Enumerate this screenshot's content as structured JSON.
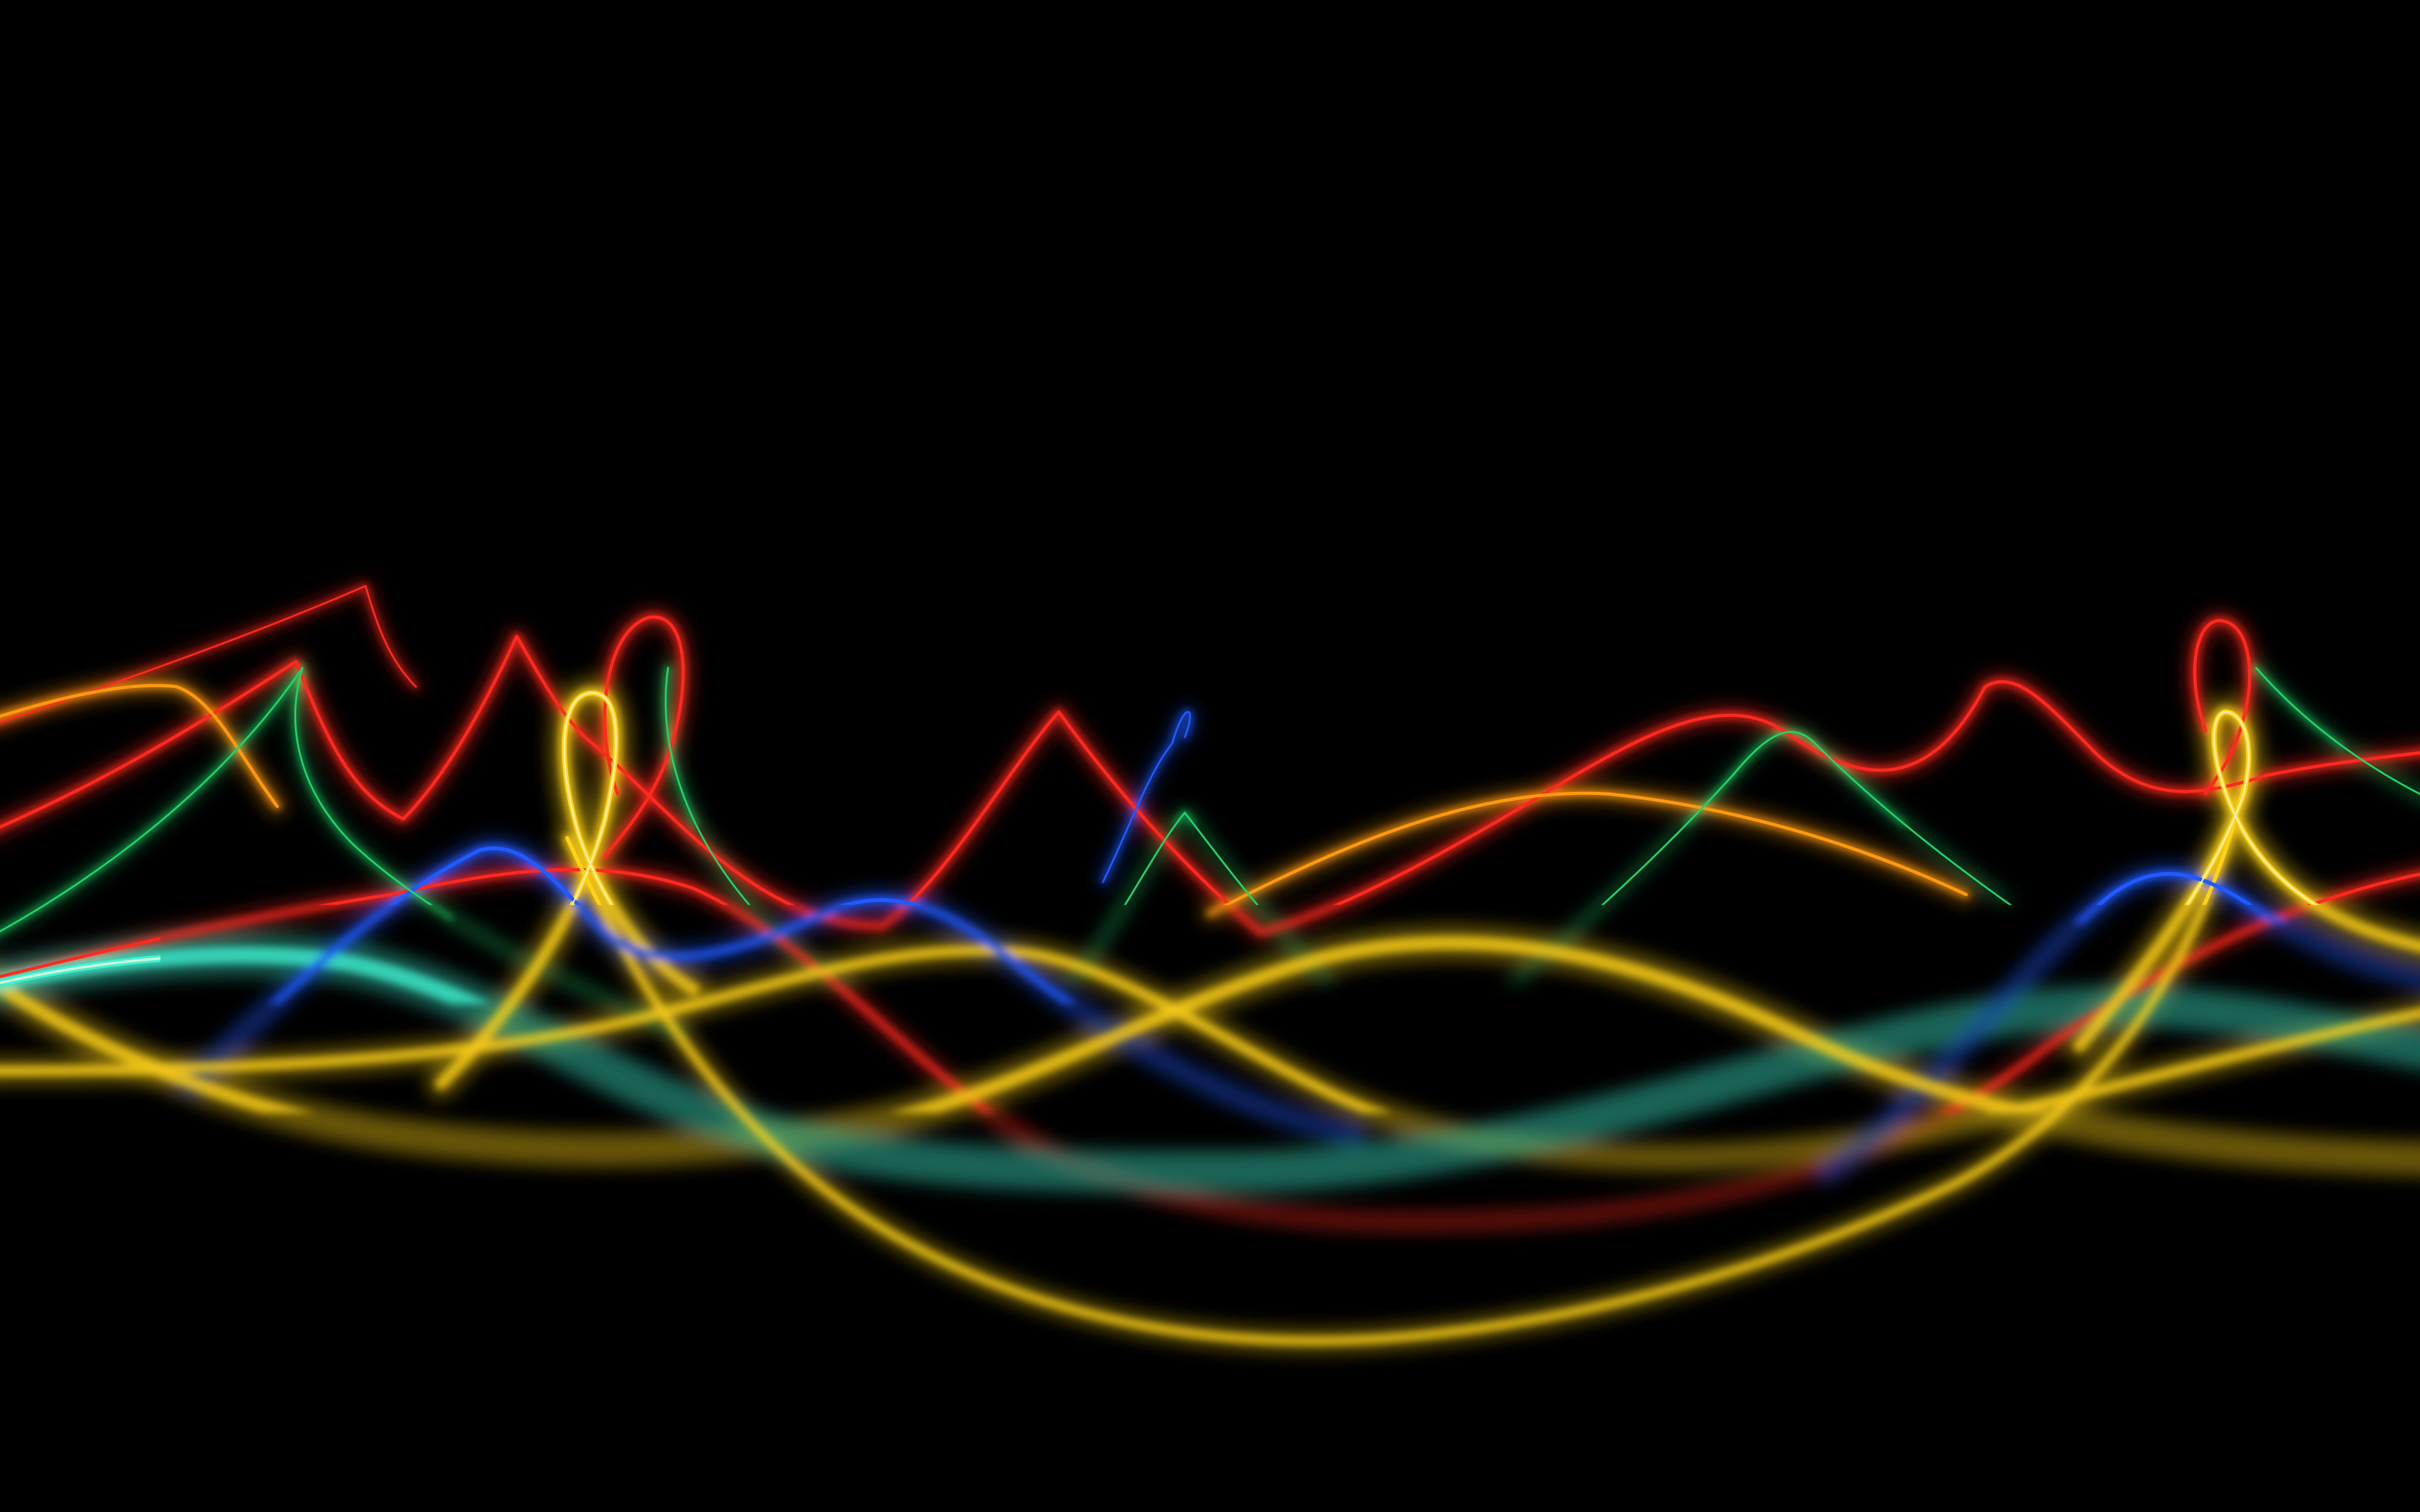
{
  "background": "#000000",
  "colors": {
    "red": "#ff2a1e",
    "yellow": "#ffd21a",
    "orange": "#ff9a10",
    "cyan": "#3ef2d2",
    "blue": "#1f5bff",
    "green": "#22d36a",
    "white_core": "#fff8d8"
  },
  "subject": "light-painting-wave-trails"
}
